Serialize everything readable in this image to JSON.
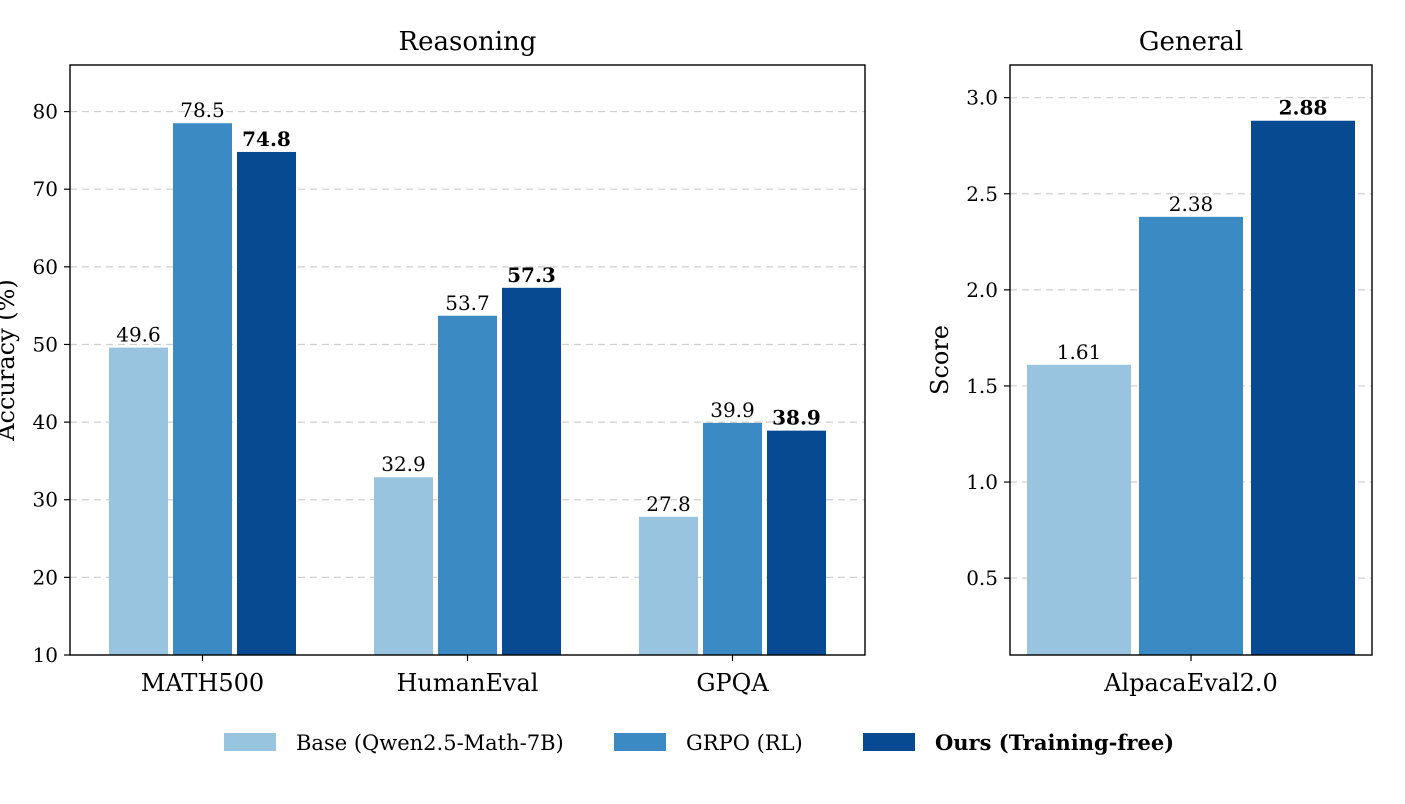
{
  "colors": {
    "base": "#98c4e0",
    "grpo": "#3b8ac3",
    "ours": "#084a91"
  },
  "legend": [
    {
      "key": "base",
      "label": "Base (Qwen2.5-Math-7B)",
      "bold": false
    },
    {
      "key": "grpo",
      "label": "GRPO (RL)",
      "bold": false
    },
    {
      "key": "ours",
      "label": "Ours (Training-free)",
      "bold": true
    }
  ],
  "chart_data": [
    {
      "type": "bar",
      "title": "Reasoning",
      "xlabel": "",
      "ylabel": "Accuracy (%)",
      "ylim": [
        10,
        86
      ],
      "yticks": [
        10,
        20,
        30,
        40,
        50,
        60,
        70,
        80
      ],
      "grid": true,
      "categories": [
        "MATH500",
        "HumanEval",
        "GPQA"
      ],
      "series": [
        {
          "key": "base",
          "name": "Base (Qwen2.5-Math-7B)",
          "values": [
            49.6,
            32.9,
            27.8
          ],
          "labels": [
            "49.6",
            "32.9",
            "27.8"
          ],
          "bold": false
        },
        {
          "key": "grpo",
          "name": "GRPO (RL)",
          "values": [
            78.5,
            53.7,
            39.9
          ],
          "labels": [
            "78.5",
            "53.7",
            "39.9"
          ],
          "bold": false
        },
        {
          "key": "ours",
          "name": "Ours (Training-free)",
          "values": [
            74.8,
            57.3,
            38.9
          ],
          "labels": [
            "74.8",
            "57.3",
            "38.9"
          ],
          "bold": true
        }
      ]
    },
    {
      "type": "bar",
      "title": "General",
      "xlabel": "",
      "ylabel": "Score",
      "ylim": [
        0.1,
        3.17
      ],
      "yticks": [
        0.5,
        1.0,
        1.5,
        2.0,
        2.5,
        3.0
      ],
      "yticklabels": [
        "0.5",
        "1.0",
        "1.5",
        "2.0",
        "2.5",
        "3.0"
      ],
      "grid": true,
      "categories": [
        "AlpacaEval2.0"
      ],
      "series": [
        {
          "key": "base",
          "name": "Base (Qwen2.5-Math-7B)",
          "values": [
            1.61
          ],
          "labels": [
            "1.61"
          ],
          "bold": false
        },
        {
          "key": "grpo",
          "name": "GRPO (RL)",
          "values": [
            2.38
          ],
          "labels": [
            "2.38"
          ],
          "bold": false
        },
        {
          "key": "ours",
          "name": "Ours (Training-free)",
          "values": [
            2.88
          ],
          "labels": [
            "2.88"
          ],
          "bold": true
        }
      ]
    }
  ]
}
